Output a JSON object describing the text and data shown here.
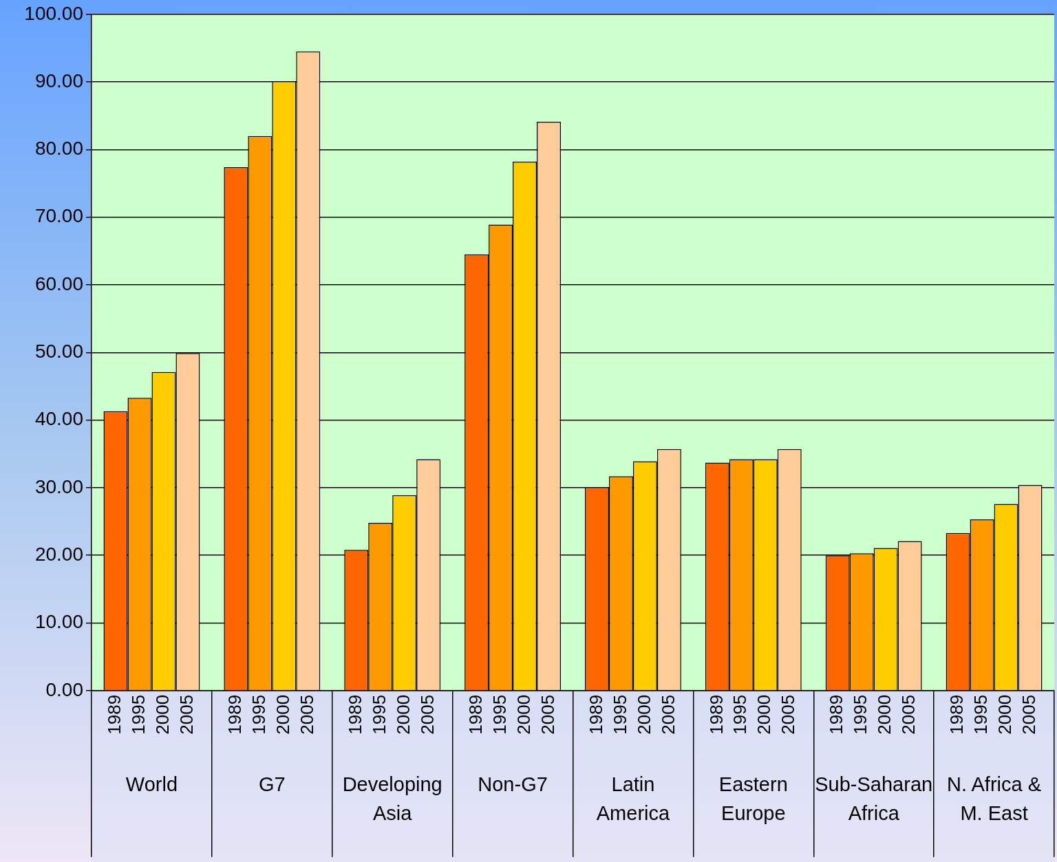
{
  "chart_data": {
    "type": "bar",
    "categories": [
      "World",
      "G7",
      "Developing Asia",
      "Non-G7",
      "Latin America",
      "Eastern Europe",
      "Sub-Saharan Africa",
      "N. Africa & M. East"
    ],
    "series": [
      {
        "name": "1989",
        "color": "#ff6600",
        "values": [
          41.3,
          77.4,
          20.8,
          64.5,
          30.1,
          33.7,
          20.0,
          23.3
        ]
      },
      {
        "name": "1995",
        "color": "#ff9900",
        "values": [
          43.3,
          82.0,
          24.8,
          68.9,
          31.7,
          34.2,
          20.3,
          25.3
        ]
      },
      {
        "name": "2000",
        "color": "#ffcc00",
        "values": [
          47.1,
          90.1,
          28.9,
          78.2,
          33.9,
          34.2,
          21.1,
          27.6
        ]
      },
      {
        "name": "2005",
        "color": "#ffcc99",
        "values": [
          49.9,
          94.5,
          34.2,
          84.1,
          35.7,
          35.7,
          22.1,
          30.4
        ]
      }
    ],
    "ylim": [
      0,
      100
    ],
    "yticks": [
      {
        "value": 0,
        "label": "0.00"
      },
      {
        "value": 10,
        "label": "10.00"
      },
      {
        "value": 20,
        "label": "20.00"
      },
      {
        "value": 30,
        "label": "30.00"
      },
      {
        "value": 40,
        "label": "40.00"
      },
      {
        "value": 50,
        "label": "50.00"
      },
      {
        "value": 60,
        "label": "60.00"
      },
      {
        "value": 70,
        "label": "70.00"
      },
      {
        "value": 80,
        "label": "80.00"
      },
      {
        "value": 90,
        "label": "90.00"
      },
      {
        "value": 100,
        "label": "100.00"
      }
    ],
    "grid": "y",
    "legend": false
  }
}
